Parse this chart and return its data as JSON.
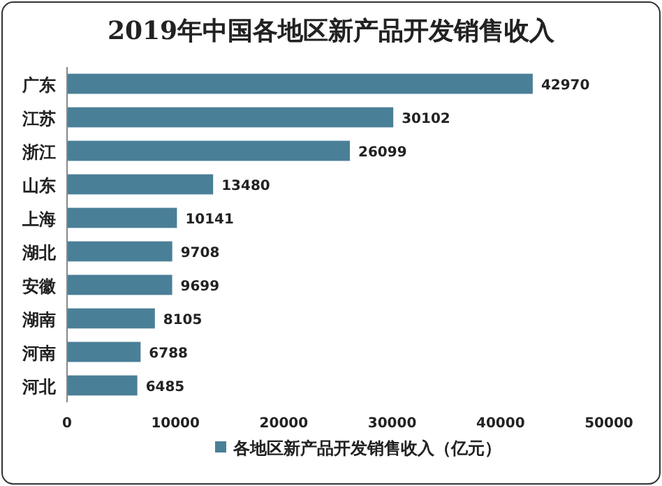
{
  "chart_data": {
    "type": "bar",
    "orientation": "horizontal",
    "title": "2019年中国各地区新产品开发销售收入",
    "categories": [
      "广东",
      "江苏",
      "浙江",
      "山东",
      "上海",
      "湖北",
      "安徽",
      "湖南",
      "河南",
      "河北"
    ],
    "series": [
      {
        "name": "各地区新产品开发销售收入（亿元）",
        "color": "#4a7f98",
        "values": [
          42970,
          30102,
          26099,
          13480,
          10141,
          9708,
          9699,
          8105,
          6788,
          6485
        ]
      }
    ],
    "xlim": [
      0,
      50000
    ],
    "xticks": [
      0,
      10000,
      20000,
      30000,
      40000,
      50000
    ],
    "data_labels": true,
    "legend": "bottom",
    "grid": false
  }
}
